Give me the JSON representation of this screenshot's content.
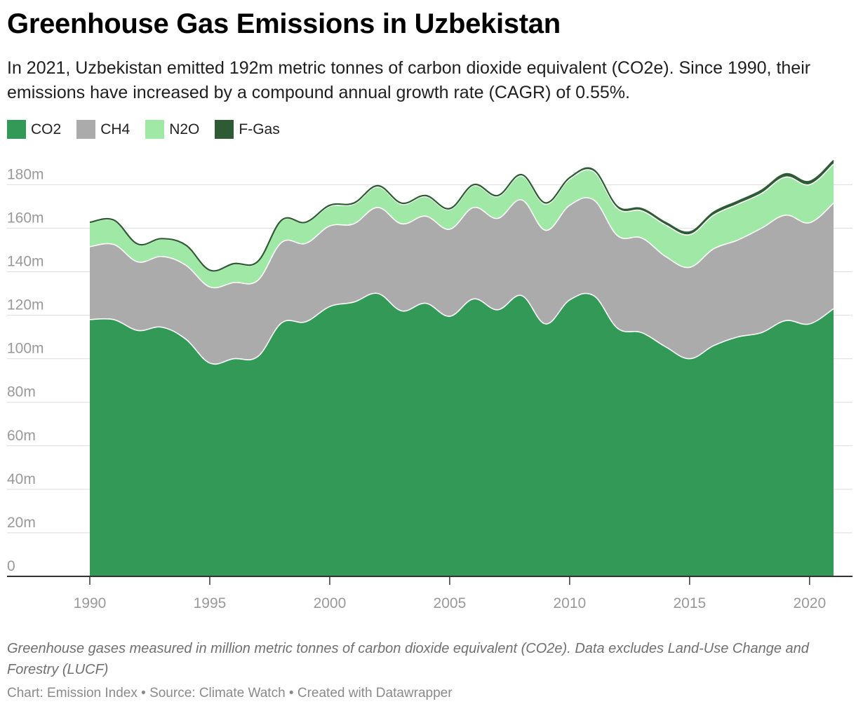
{
  "title": "Greenhouse Gas Emissions in Uzbekistan",
  "subtitle": "In 2021, Uzbekistan emitted 192m metric tonnes of carbon dioxide equivalent (CO2e). Since 1990, their emissions have increased by a compound annual growth rate (CAGR) of 0.55%.",
  "notes": "Greenhouse gases measured in million metric tonnes of carbon dioxide equivalent (CO2e). Data excludes Land-Use Change and Forestry (LUCF)",
  "credit": "Chart: Emission Index • Source: Climate Watch • Created with Datawrapper",
  "colors": {
    "CO2": "#339956",
    "CH4": "#ababab",
    "N2O": "#a0e8a6",
    "F-Gas": "#2f5b34",
    "grid": "#dddddd",
    "axis": "#333333"
  },
  "legend": [
    {
      "label": "CO2",
      "color": "#339956"
    },
    {
      "label": "CH4",
      "color": "#ababab"
    },
    {
      "label": "N2O",
      "color": "#a0e8a6"
    },
    {
      "label": "F-Gas",
      "color": "#2f5b34"
    }
  ],
  "chart_data": {
    "type": "area",
    "stacked": true,
    "x": [
      1990,
      1991,
      1992,
      1993,
      1994,
      1995,
      1996,
      1997,
      1998,
      1999,
      2000,
      2001,
      2002,
      2003,
      2004,
      2005,
      2006,
      2007,
      2008,
      2009,
      2010,
      2011,
      2012,
      2013,
      2014,
      2015,
      2016,
      2017,
      2018,
      2019,
      2020,
      2021
    ],
    "xticks": [
      "1990",
      "1995",
      "2000",
      "2005",
      "2010",
      "2015",
      "2020"
    ],
    "yticks": [
      "0",
      "20m",
      "40m",
      "60m",
      "80m",
      "100m",
      "120m",
      "140m",
      "160m",
      "180m"
    ],
    "ylim": [
      0,
      193
    ],
    "xlim": [
      1990,
      2021
    ],
    "grid": true,
    "legend_position": "top-left",
    "series": [
      {
        "name": "CO2",
        "values": [
          118,
          118,
          113,
          114.5,
          109,
          98,
          100,
          101,
          116.5,
          117,
          124,
          126,
          130,
          122,
          125.5,
          119.5,
          127.5,
          122.5,
          129,
          116,
          127,
          129,
          114,
          112,
          105.5,
          100,
          106,
          110,
          112,
          117.5,
          116,
          123
        ]
      },
      {
        "name": "CH4",
        "values": [
          33.5,
          34.5,
          31.5,
          32.5,
          34,
          35,
          35,
          35,
          37,
          36,
          37,
          36,
          39.5,
          40,
          40,
          40,
          42,
          42,
          44,
          43,
          43.5,
          44,
          42.5,
          43.5,
          41.5,
          42,
          44.5,
          44.5,
          48,
          48.5,
          46.5,
          48.5
        ]
      },
      {
        "name": "N2O",
        "values": [
          11,
          11,
          8,
          8,
          9,
          7.5,
          8.5,
          8.5,
          10,
          9.5,
          9,
          9,
          9.5,
          9,
          9,
          9,
          10,
          10,
          11,
          12,
          12,
          13,
          12.5,
          12.5,
          14.5,
          15,
          15.5,
          16.5,
          16,
          17.5,
          17.5,
          18
        ]
      },
      {
        "name": "F-Gas",
        "values": [
          0.2,
          0.2,
          0.2,
          0.2,
          0.2,
          0.2,
          0.2,
          0.2,
          0.2,
          0.2,
          0.5,
          0.5,
          0.5,
          0.5,
          0.5,
          0.5,
          0.5,
          0.5,
          0.6,
          0.6,
          0.7,
          0.8,
          0.9,
          1.0,
          1.1,
          1.2,
          1.3,
          1.3,
          1.4,
          1.4,
          1.5,
          1.6
        ]
      }
    ]
  }
}
